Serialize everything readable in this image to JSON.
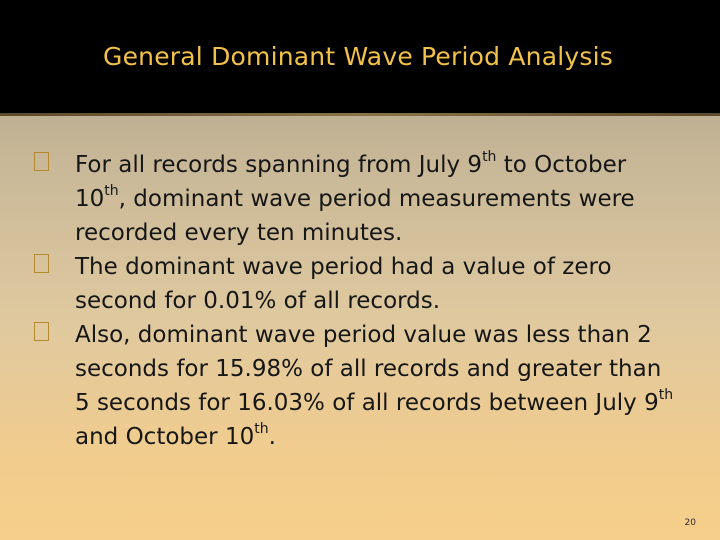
{
  "slide": {
    "title": "General Dominant Wave Period Analysis",
    "bullets": [
      {
        "p1": "For all records spanning from July 9",
        "s1": "th",
        "p2": " to October 10",
        "s2": "th",
        "p3": ", dominant wave period measurements were recorded every ten minutes."
      },
      {
        "text": "The dominant wave period had a value of zero second for 0.01% of all records."
      },
      {
        "p1": "Also, dominant wave period value was less than 2 seconds for 15.98% of all records and greater than 5 seconds for 16.03% of all records between July 9",
        "s1": "th",
        "p2": " and October 10",
        "s2": "th",
        "p3": "."
      }
    ],
    "page_number": "20"
  },
  "colors": {
    "title_text": "#f2c14a",
    "title_background": "#000000",
    "bullet_marker": "#b58a2f",
    "body_text": "#161616",
    "background_top": "#a89c86",
    "background_bottom": "#f6cf8a"
  },
  "icons": {
    "bullet": "hollow-square-bullet-icon"
  }
}
